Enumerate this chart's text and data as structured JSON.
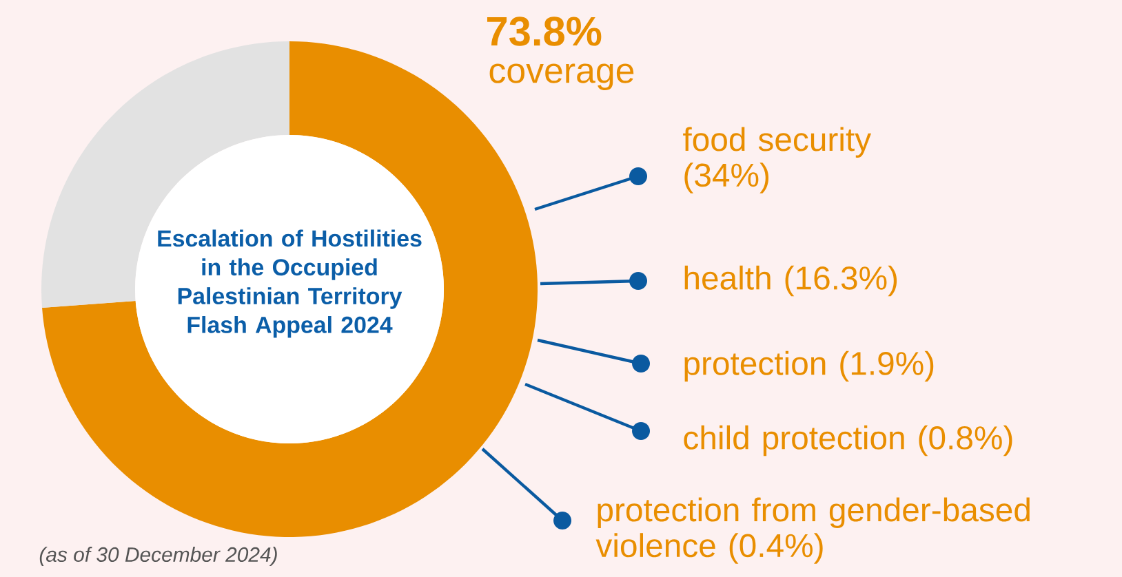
{
  "chart_data": {
    "type": "donut",
    "title": "Escalation of Hostilities in the Occupied Palestinian Territory Flash Appeal 2024",
    "categories": [
      "coverage",
      null
    ],
    "values": [
      73.8,
      26.2
    ],
    "colors": [
      "#e98e00",
      "#e2e2e2"
    ],
    "value_labels": [
      "73.8%",
      null
    ],
    "annotations": [
      "food security (34%)",
      "health (16.3%)",
      "protection (1.9%)",
      "child protection (0.8%)",
      "protection from gender-based violence (0.4%)",
      "(as of 30 December 2024)"
    ]
  }
}
